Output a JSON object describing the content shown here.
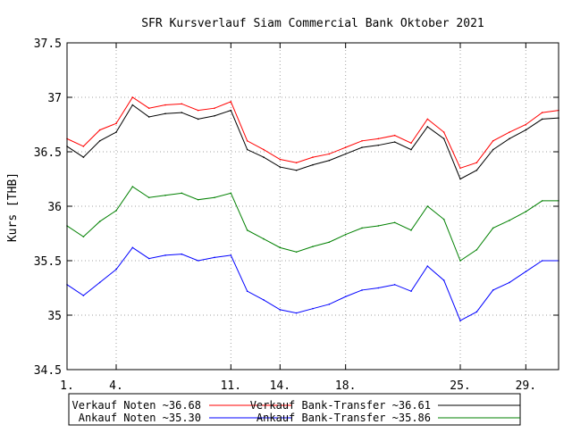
{
  "chart_data": {
    "type": "line",
    "title": "SFR Kursverlauf Siam Commercial Bank Oktober 2021",
    "xlabel": "",
    "ylabel": "Kurs [THB]",
    "xlim": [
      1,
      31
    ],
    "ylim": [
      34.5,
      37.5
    ],
    "y_ticks": [
      "34.5",
      "35",
      "35.5",
      "36",
      "36.5",
      "37",
      "37.5"
    ],
    "x_ticks": [
      {
        "day": 1,
        "label": "1."
      },
      {
        "day": 4,
        "label": "4."
      },
      {
        "day": 11,
        "label": "11."
      },
      {
        "day": 14,
        "label": "14."
      },
      {
        "day": 18,
        "label": "18."
      },
      {
        "day": 25,
        "label": "25."
      },
      {
        "day": 29,
        "label": "29."
      }
    ],
    "grid": true,
    "legend_position": "bottom",
    "legend": [
      {
        "label": "Verkauf Noten ~36.68",
        "series": 0
      },
      {
        "label": "Verkauf Bank-Transfer ~36.61",
        "series": 1
      },
      {
        "label": "Ankauf Noten ~35.30",
        "series": 2
      },
      {
        "label": "Ankauf Bank-Transfer ~35.86",
        "series": 3
      }
    ],
    "x": [
      1,
      2,
      3,
      4,
      5,
      6,
      7,
      8,
      9,
      10,
      11,
      12,
      13,
      14,
      15,
      16,
      17,
      18,
      19,
      20,
      21,
      22,
      23,
      24,
      25,
      26,
      27,
      28,
      29,
      30,
      31
    ],
    "series": [
      {
        "name": "Verkauf Noten",
        "color": "#ff0000",
        "values": [
          36.62,
          36.55,
          36.7,
          36.76,
          37.0,
          36.9,
          36.93,
          36.94,
          36.88,
          36.9,
          36.96,
          36.6,
          36.52,
          36.43,
          36.4,
          36.45,
          36.48,
          36.54,
          36.6,
          36.62,
          36.65,
          36.58,
          36.8,
          36.68,
          36.35,
          36.4,
          36.6,
          36.68,
          36.75,
          36.86,
          36.88
        ]
      },
      {
        "name": "Verkauf Bank-Transfer",
        "color": "#000000",
        "values": [
          36.55,
          36.45,
          36.6,
          36.68,
          36.93,
          36.82,
          36.85,
          36.86,
          36.8,
          36.83,
          36.88,
          36.52,
          36.45,
          36.36,
          36.33,
          36.38,
          36.42,
          36.48,
          36.54,
          36.56,
          36.59,
          36.52,
          36.73,
          36.62,
          36.25,
          36.33,
          36.52,
          36.62,
          36.7,
          36.8,
          36.81
        ]
      },
      {
        "name": "Ankauf Noten",
        "color": "#0000ff",
        "values": [
          35.28,
          35.18,
          35.3,
          35.42,
          35.62,
          35.52,
          35.55,
          35.56,
          35.5,
          35.53,
          35.55,
          35.22,
          35.14,
          35.05,
          35.02,
          35.06,
          35.1,
          35.17,
          35.23,
          35.25,
          35.28,
          35.22,
          35.45,
          35.32,
          34.95,
          35.03,
          35.23,
          35.3,
          35.4,
          35.5,
          35.5
        ]
      },
      {
        "name": "Ankauf Bank-Transfer",
        "color": "#008000",
        "values": [
          35.82,
          35.72,
          35.86,
          35.96,
          36.18,
          36.08,
          36.1,
          36.12,
          36.06,
          36.08,
          36.12,
          35.78,
          35.7,
          35.62,
          35.58,
          35.63,
          35.67,
          35.74,
          35.8,
          35.82,
          35.85,
          35.78,
          36.0,
          35.88,
          35.5,
          35.6,
          35.8,
          35.87,
          35.95,
          36.05,
          36.05
        ]
      }
    ]
  }
}
